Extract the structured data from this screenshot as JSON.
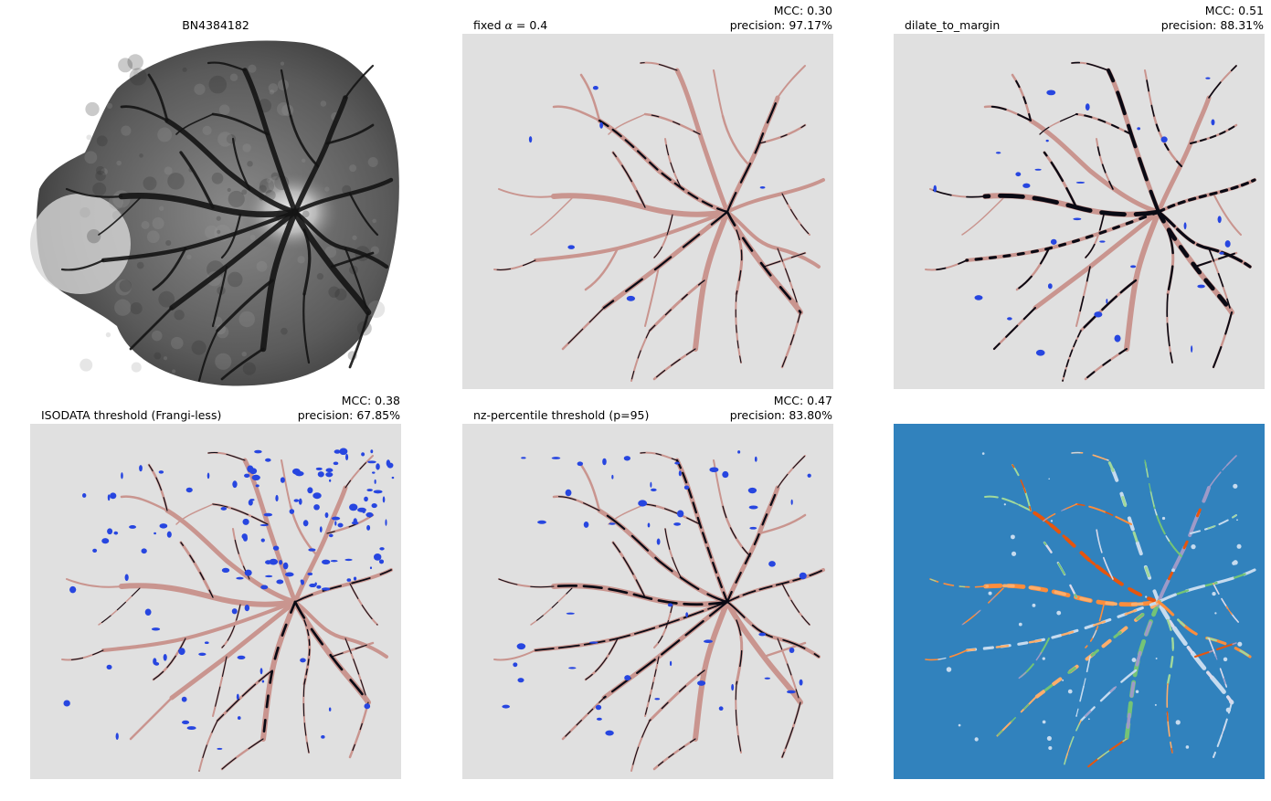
{
  "figure": {
    "panels": [
      {
        "id": "original",
        "title": "BN4384182",
        "kind": "fundus"
      },
      {
        "id": "fixed-alpha",
        "left_title_prefix": "fixed ",
        "left_title_symbol": "α",
        "left_title_suffix": " = 0.4",
        "mcc": "MCC: 0.30",
        "precision": "precision: 97.17%",
        "kind": "overlay",
        "false_positives": "few"
      },
      {
        "id": "dilate",
        "left_title": "dilate_to_margin",
        "mcc": "MCC: 0.51",
        "precision": "precision: 88.31%",
        "kind": "overlay",
        "false_positives": "some"
      },
      {
        "id": "isodata",
        "left_title": "ISODATA threshold (Frangi-less)",
        "mcc": "MCC: 0.38",
        "precision": "precision: 67.85%",
        "kind": "overlay",
        "false_positives": "many"
      },
      {
        "id": "nz-percentile",
        "left_title": "nz-percentile threshold (p=95)",
        "mcc": "MCC: 0.47",
        "precision": "precision: 83.80%",
        "kind": "overlay",
        "false_positives": "moderate"
      },
      {
        "id": "labels",
        "kind": "labels"
      }
    ],
    "colors": {
      "background_gray": "#e0e0e0",
      "ground_truth_vessel": "#c9958f",
      "true_positive": "#0a0a14",
      "false_positive": "#2746e0",
      "label_background": "#3182bd",
      "label_palette": [
        "#fdae6b",
        "#fd8d3c",
        "#a1d99b",
        "#c6dbef",
        "#9e9ac8",
        "#dadaeb",
        "#e6550d",
        "#74c476"
      ]
    }
  }
}
